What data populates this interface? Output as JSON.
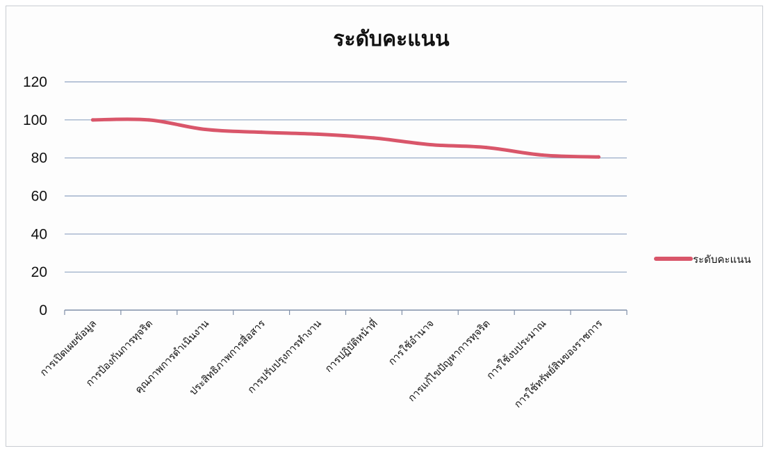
{
  "chart_data": {
    "type": "line",
    "title": "ระดับคะแนน",
    "xlabel": "",
    "ylabel": "",
    "categories": [
      "การเปิดเผยข้อมูล",
      "การป้องกันการทุจริต",
      "คุณภาพการดำเนินงาน",
      "ประสิทธิภาพการสื่อสาร",
      "การปรับปรุงการทำงาน",
      "การปฏิบัติหน้าที่",
      "การใช้อำนาจ",
      "การแก้ไขปัญหาการทุจริต",
      "การใช้งบประมาณ",
      "การใช้ทรัพย์สินของราชการ"
    ],
    "series": [
      {
        "name": "ระดับคะแนน",
        "values": [
          100,
          100,
          95,
          93.5,
          92.5,
          90.5,
          87,
          85.5,
          81.5,
          80.5
        ]
      }
    ],
    "ylim": [
      0,
      120
    ],
    "yticks": [
      0,
      20,
      40,
      60,
      80,
      100,
      120
    ],
    "grid": true,
    "legend_position": "right",
    "colors": {
      "series": "#d9566a",
      "grid": "#8fa3c2",
      "axis": "#7f8fa8"
    }
  }
}
